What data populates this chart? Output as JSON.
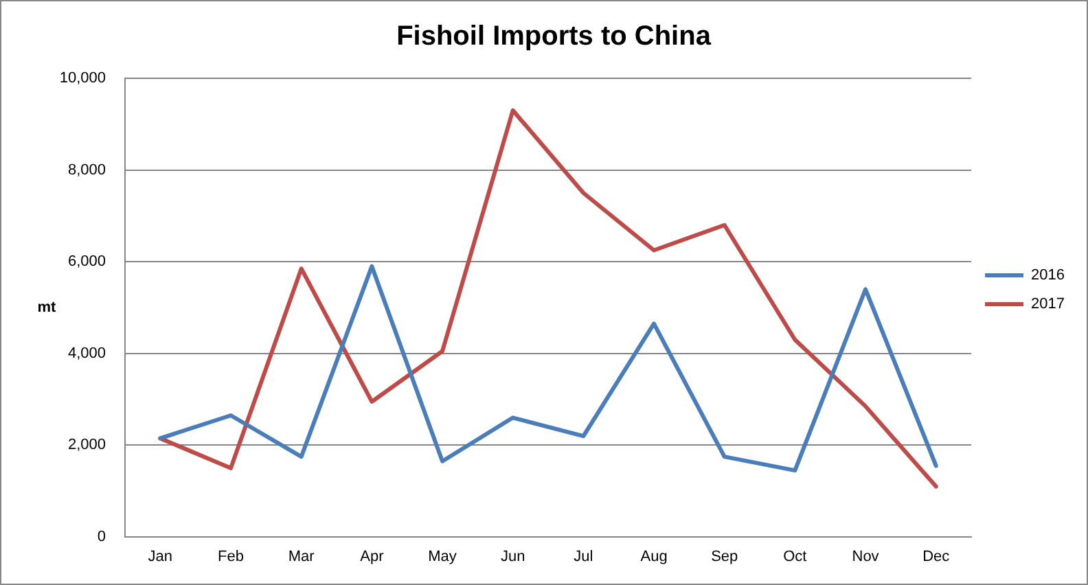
{
  "chart_data": {
    "type": "line",
    "title": "Fishoil Imports to China",
    "ylabel": "mt",
    "categories": [
      "Jan",
      "Feb",
      "Mar",
      "Apr",
      "May",
      "Jun",
      "Jul",
      "Aug",
      "Sep",
      "Oct",
      "Nov",
      "Dec"
    ],
    "series": [
      {
        "name": "2016",
        "color": "#4a7ebb",
        "values": [
          2150,
          2650,
          1750,
          5900,
          1650,
          2600,
          2200,
          4650,
          1750,
          1450,
          5400,
          1550
        ]
      },
      {
        "name": "2017",
        "color": "#be4b48",
        "values": [
          2150,
          1500,
          5850,
          2950,
          4050,
          9300,
          7500,
          6250,
          6800,
          4300,
          2850,
          1100
        ]
      }
    ],
    "ylim": [
      0,
      10000
    ],
    "yticks": [
      0,
      {
        "value": 2000,
        "label": "2,000"
      },
      {
        "value": 4000,
        "label": "4,000"
      },
      {
        "value": 6000,
        "label": "6,000"
      },
      {
        "value": 8000,
        "label": "8,000"
      },
      {
        "value": 10000,
        "label": "10,000"
      }
    ],
    "grid": "y",
    "legend": "right"
  }
}
